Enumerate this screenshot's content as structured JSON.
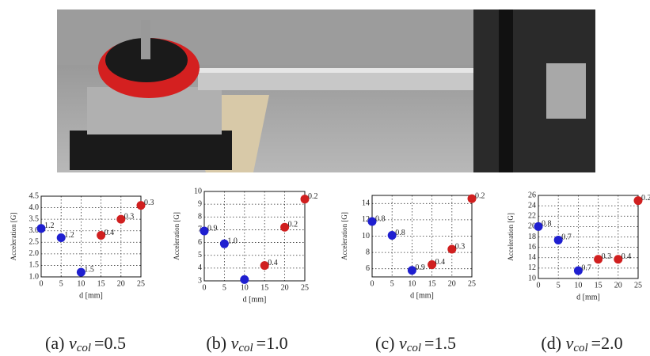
{
  "chart_data": [
    {
      "type": "scatter",
      "xlabel": "d [mm]",
      "ylabel": "Acceleration [G]",
      "x": [
        0,
        5,
        10,
        15,
        20,
        25
      ],
      "values": [
        3.1,
        2.7,
        1.2,
        2.8,
        3.5,
        4.1
      ],
      "annotations": [
        "1.2",
        "1.2",
        "1.5",
        "0.4",
        "0.3",
        "0.3"
      ],
      "point_colors": [
        "#1f1fd0",
        "#1f1fd0",
        "#1f1fd0",
        "#d01f1f",
        "#d01f1f",
        "#d01f1f"
      ],
      "xlim": [
        0,
        25
      ],
      "xticks": [
        0,
        5,
        10,
        15,
        20,
        25
      ],
      "ylim": [
        1,
        4.5
      ],
      "yticks": [
        {
          "value": 1,
          "label": "1.0"
        },
        1.5,
        {
          "value": 2,
          "label": "2.0"
        },
        2.5,
        {
          "value": 3,
          "label": "3.0"
        },
        3.5,
        {
          "value": 4,
          "label": "4.0"
        },
        4.5
      ],
      "grid": true,
      "caption": {
        "label": "(a)",
        "symbol": "v",
        "subscript": "col",
        "value": "=0.5"
      }
    },
    {
      "type": "scatter",
      "xlabel": "d [mm]",
      "ylabel": "Acceleration [G]",
      "x": [
        0,
        5,
        10,
        15,
        20,
        25
      ],
      "values": [
        6.9,
        5.9,
        3.1,
        4.2,
        7.2,
        9.4
      ],
      "annotations": [
        "0.9",
        "1.0",
        null,
        "0.4",
        "0.2",
        "0.2"
      ],
      "point_colors": [
        "#1f1fd0",
        "#1f1fd0",
        "#1f1fd0",
        "#d01f1f",
        "#d01f1f",
        "#d01f1f"
      ],
      "xlim": [
        0,
        25
      ],
      "xticks": [
        0,
        5,
        10,
        15,
        20,
        25
      ],
      "ylim": [
        3,
        10
      ],
      "yticks": [
        3,
        4,
        5,
        6,
        7,
        8,
        9,
        10
      ],
      "grid": true,
      "caption": {
        "label": "(b)",
        "symbol": "v",
        "subscript": "col",
        "value": "=1.0"
      }
    },
    {
      "type": "scatter",
      "xlabel": "d [mm]",
      "ylabel": "Acceleration [G]",
      "x": [
        0,
        5,
        10,
        15,
        20,
        25
      ],
      "values": [
        11.8,
        10.1,
        5.8,
        6.5,
        8.4,
        14.6
      ],
      "annotations": [
        "0.8",
        "0.8",
        "0.9",
        "0.4",
        "0.3",
        "0.2"
      ],
      "point_colors": [
        "#1f1fd0",
        "#1f1fd0",
        "#1f1fd0",
        "#d01f1f",
        "#d01f1f",
        "#d01f1f"
      ],
      "xlim": [
        0,
        25
      ],
      "xticks": [
        0,
        5,
        10,
        15,
        20,
        25
      ],
      "ylim": [
        5,
        15
      ],
      "yticks": [
        6,
        8,
        10,
        12,
        14
      ],
      "grid": true,
      "caption": {
        "label": "(c)",
        "symbol": "v",
        "subscript": "col",
        "value": "=1.5"
      }
    },
    {
      "type": "scatter",
      "xlabel": "d [mm]",
      "ylabel": "Acceleration [G]",
      "x": [
        0,
        5,
        10,
        15,
        20,
        25
      ],
      "values": [
        20,
        17.4,
        11.5,
        13.7,
        13.7,
        25
      ],
      "annotations": [
        "0.8",
        "0.7",
        "0.7",
        "0.3",
        "0.4",
        "0.2"
      ],
      "point_colors": [
        "#1f1fd0",
        "#1f1fd0",
        "#1f1fd0",
        "#d01f1f",
        "#d01f1f",
        "#d01f1f"
      ],
      "xlim": [
        0,
        25
      ],
      "xticks": [
        0,
        5,
        10,
        15,
        20,
        25
      ],
      "ylim": [
        10,
        26
      ],
      "yticks": [
        10,
        12,
        14,
        16,
        18,
        20,
        22,
        24,
        26
      ],
      "grid": true,
      "caption": {
        "label": "(d)",
        "symbol": "v",
        "subscript": "col",
        "value": "=2.0"
      }
    }
  ]
}
